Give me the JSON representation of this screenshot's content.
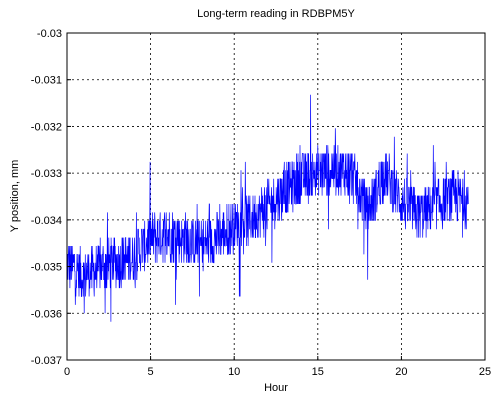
{
  "chart_data": {
    "type": "line",
    "title": "Long-term reading in RDBPM5Y",
    "xlabel": "Hour",
    "ylabel": "Y position, mm",
    "xlim": [
      0,
      25
    ],
    "ylim": [
      -0.037,
      -0.03
    ],
    "xticks": [
      0,
      5,
      10,
      15,
      20,
      25
    ],
    "yticks": [
      -0.037,
      -0.036,
      -0.035,
      -0.034,
      -0.033,
      -0.032,
      -0.031,
      -0.03
    ],
    "xtick_labels": [
      "0",
      "5",
      "10",
      "15",
      "20",
      "25"
    ],
    "ytick_labels": [
      "-0.037",
      "-0.036",
      "-0.035",
      "-0.034",
      "-0.033",
      "-0.032",
      "-0.031",
      "-0.03"
    ],
    "grid": true,
    "series": [
      {
        "color": "#0000ff",
        "x": [
          0,
          1,
          2,
          3,
          4,
          5,
          6,
          7,
          8,
          9,
          10,
          11,
          12,
          13,
          14,
          15,
          16,
          17,
          18,
          19,
          20,
          21,
          22,
          23,
          24
        ],
        "y": [
          -0.0349,
          -0.0352,
          -0.035,
          -0.0349,
          -0.0348,
          -0.0344,
          -0.0343,
          -0.0344,
          -0.0345,
          -0.0344,
          -0.0341,
          -0.034,
          -0.0337,
          -0.0334,
          -0.0331,
          -0.033,
          -0.0329,
          -0.033,
          -0.0338,
          -0.033,
          -0.0336,
          -0.0339,
          -0.0337,
          -0.0335,
          -0.0336
        ]
      }
    ]
  }
}
